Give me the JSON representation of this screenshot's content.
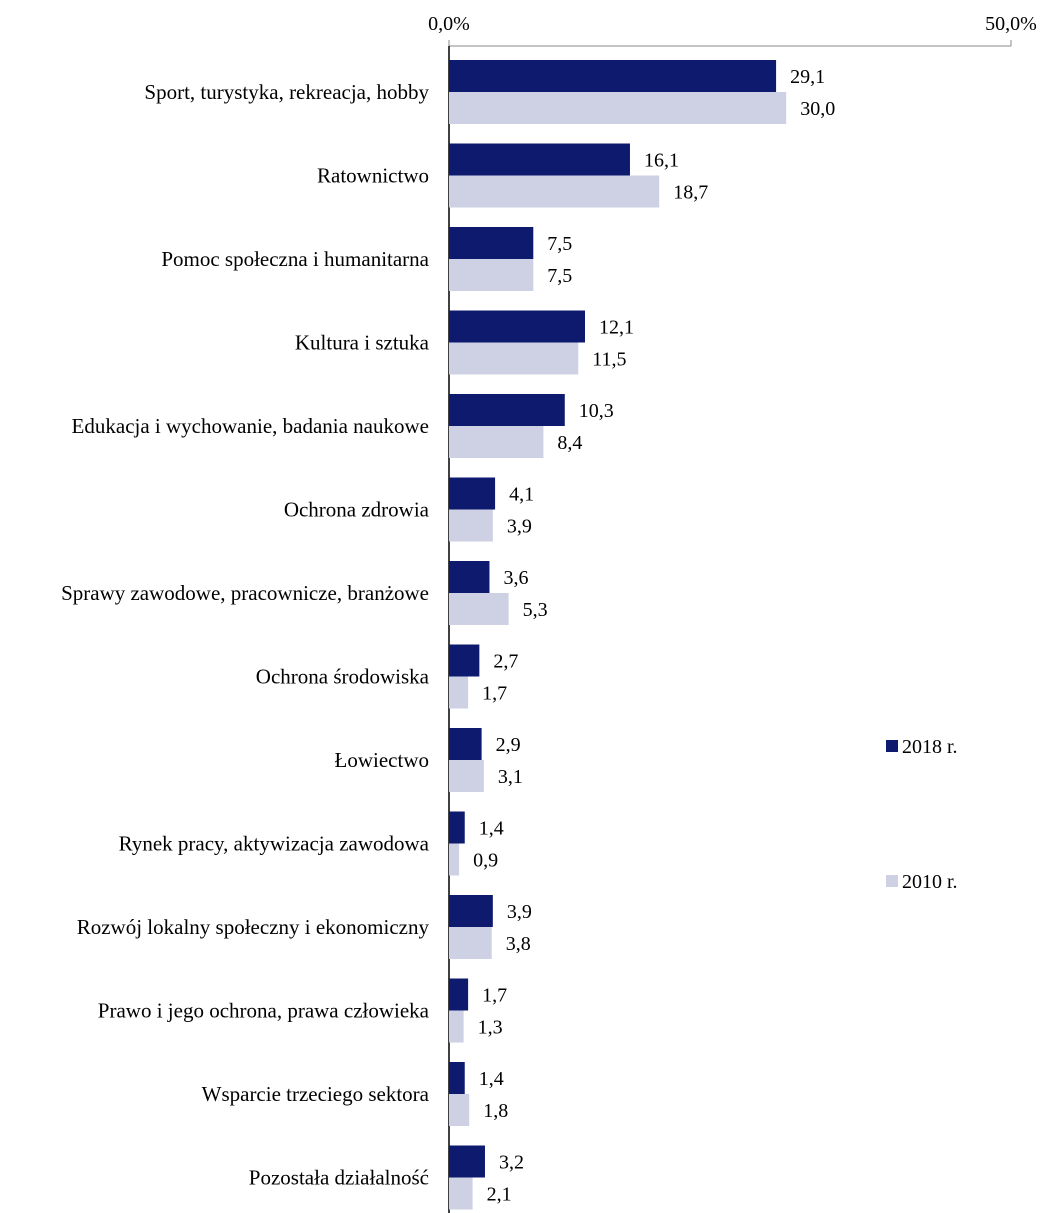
{
  "chart_data": {
    "type": "bar",
    "orientation": "horizontal",
    "xlim": [
      0,
      50
    ],
    "x_ticks": [
      "0,0%",
      "50,0%"
    ],
    "grid": false,
    "legend_position": "right",
    "categories": [
      "Sport, turystyka, rekreacja, hobby",
      "Ratownictwo",
      "Pomoc społeczna i humanitarna",
      "Kultura i sztuka",
      "Edukacja i wychowanie, badania naukowe",
      "Ochrona zdrowia",
      "Sprawy zawodowe, pracownicze, branżowe",
      "Ochrona środowiska",
      "Łowiectwo",
      "Rynek pracy, aktywizacja zawodowa",
      "Rozwój lokalny społeczny i ekonomiczny",
      "Prawo i jego ochrona, prawa człowieka",
      "Wsparcie trzeciego sektora",
      "Pozostała działalność"
    ],
    "series": [
      {
        "name": "2018 r.",
        "color": "#0d1a6e",
        "values": [
          29.1,
          16.1,
          7.5,
          12.1,
          10.3,
          4.1,
          3.6,
          2.7,
          2.9,
          1.4,
          3.9,
          1.7,
          1.4,
          3.2
        ],
        "labels": [
          "29,1",
          "16,1",
          "7,5",
          "12,1",
          "10,3",
          "4,1",
          "3,6",
          "2,7",
          "2,9",
          "1,4",
          "3,9",
          "1,7",
          "1,4",
          "3,2"
        ]
      },
      {
        "name": "2010 r.",
        "color": "#cdd1e3",
        "values": [
          30.0,
          18.7,
          7.5,
          11.5,
          8.4,
          3.9,
          5.3,
          1.7,
          3.1,
          0.9,
          3.8,
          1.3,
          1.8,
          2.1
        ],
        "labels": [
          "30,0",
          "18,7",
          "7,5",
          "11,5",
          "8,4",
          "3,9",
          "5,3",
          "1,7",
          "3,1",
          "0,9",
          "3,8",
          "1,3",
          "1,8",
          "2,1"
        ]
      }
    ]
  }
}
